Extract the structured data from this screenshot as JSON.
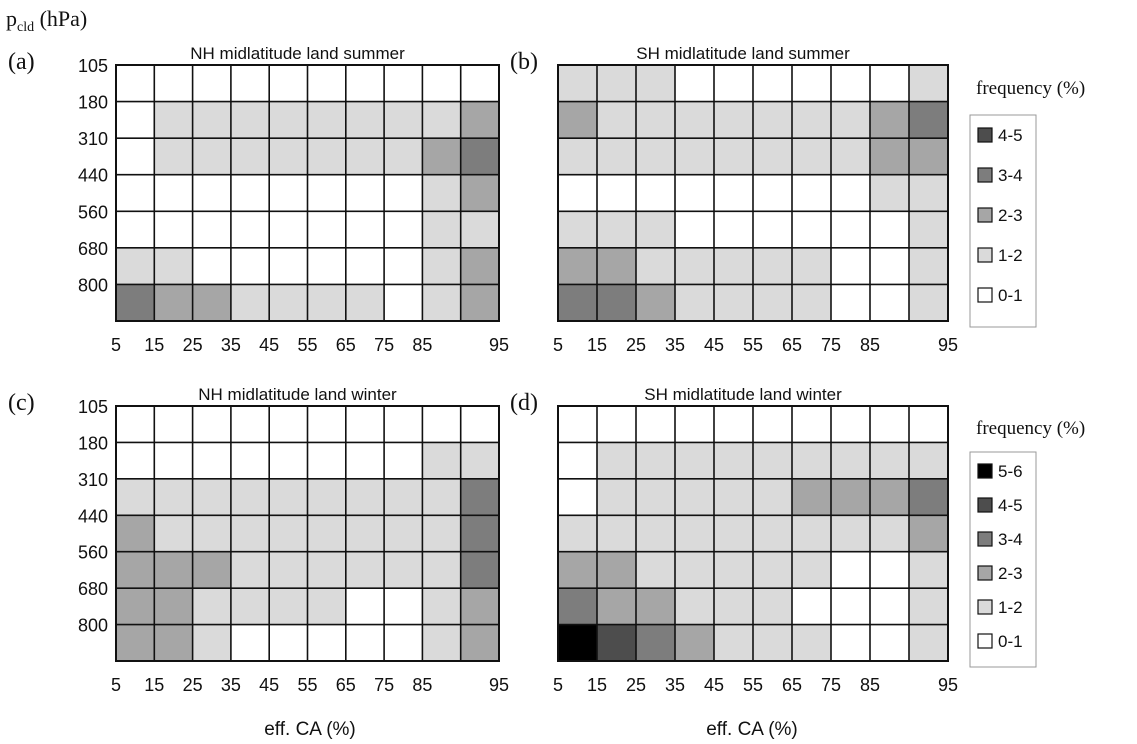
{
  "figure": {
    "y_axis_label": "p",
    "y_axis_label_sub": "cld",
    "y_axis_unit": " (hPa)",
    "x_axis_label": "eff. CA (%)"
  },
  "legends": [
    {
      "title": "frequency (%)",
      "items": [
        {
          "label": "4-5",
          "color": "#4d4d4d"
        },
        {
          "label": "3-4",
          "color": "#7d7d7d"
        },
        {
          "label": "2-3",
          "color": "#a6a6a6"
        },
        {
          "label": "1-2",
          "color": "#dadada"
        },
        {
          "label": "0-1",
          "color": "#ffffff"
        }
      ]
    },
    {
      "title": "frequency (%)",
      "items": [
        {
          "label": "5-6",
          "color": "#000000"
        },
        {
          "label": "4-5",
          "color": "#4d4d4d"
        },
        {
          "label": "3-4",
          "color": "#7d7d7d"
        },
        {
          "label": "2-3",
          "color": "#a6a6a6"
        },
        {
          "label": "1-2",
          "color": "#dadada"
        },
        {
          "label": "0-1",
          "color": "#ffffff"
        }
      ]
    }
  ],
  "chart_data": [
    {
      "type": "heatmap",
      "panel": "(a)",
      "title": "NH midlatitude land summer",
      "x": [
        "5",
        "15",
        "25",
        "35",
        "45",
        "55",
        "65",
        "75",
        "85",
        "95"
      ],
      "y": [
        "105",
        "180",
        "310",
        "440",
        "560",
        "680",
        "800"
      ],
      "values": [
        [
          1,
          1,
          1,
          1,
          1,
          1,
          1,
          1,
          1,
          1
        ],
        [
          1,
          2,
          2,
          2,
          2,
          2,
          2,
          2,
          2,
          3
        ],
        [
          1,
          2,
          2,
          2,
          2,
          2,
          2,
          2,
          3,
          4
        ],
        [
          1,
          1,
          1,
          1,
          1,
          1,
          1,
          1,
          2,
          3
        ],
        [
          1,
          1,
          1,
          1,
          1,
          1,
          1,
          1,
          2,
          2
        ],
        [
          2,
          2,
          1,
          1,
          1,
          1,
          1,
          1,
          2,
          3
        ],
        [
          4,
          3,
          3,
          2,
          2,
          2,
          2,
          1,
          2,
          3
        ]
      ]
    },
    {
      "type": "heatmap",
      "panel": "(b)",
      "title": "SH midlatitude land summer",
      "x": [
        "5",
        "15",
        "25",
        "35",
        "45",
        "55",
        "65",
        "75",
        "85",
        "95"
      ],
      "y": [
        "105",
        "180",
        "310",
        "440",
        "560",
        "680",
        "800"
      ],
      "values": [
        [
          2,
          2,
          2,
          1,
          1,
          1,
          1,
          1,
          1,
          2
        ],
        [
          3,
          2,
          2,
          2,
          2,
          2,
          2,
          2,
          3,
          4
        ],
        [
          2,
          2,
          2,
          2,
          2,
          2,
          2,
          2,
          3,
          3
        ],
        [
          1,
          1,
          1,
          1,
          1,
          1,
          1,
          1,
          2,
          2
        ],
        [
          2,
          2,
          2,
          1,
          1,
          1,
          1,
          1,
          1,
          2
        ],
        [
          3,
          3,
          2,
          2,
          2,
          2,
          2,
          1,
          1,
          2
        ],
        [
          4,
          4,
          3,
          2,
          2,
          2,
          2,
          1,
          1,
          2
        ]
      ]
    },
    {
      "type": "heatmap",
      "panel": "(c)",
      "title": "NH midlatitude land winter",
      "x": [
        "5",
        "15",
        "25",
        "35",
        "45",
        "55",
        "65",
        "75",
        "85",
        "95"
      ],
      "y": [
        "105",
        "180",
        "310",
        "440",
        "560",
        "680",
        "800"
      ],
      "values": [
        [
          1,
          1,
          1,
          1,
          1,
          1,
          1,
          1,
          1,
          1
        ],
        [
          1,
          1,
          1,
          1,
          1,
          1,
          1,
          1,
          2,
          2
        ],
        [
          2,
          2,
          2,
          2,
          2,
          2,
          2,
          2,
          2,
          4
        ],
        [
          3,
          2,
          2,
          2,
          2,
          2,
          2,
          2,
          2,
          4
        ],
        [
          3,
          3,
          3,
          2,
          2,
          2,
          2,
          2,
          2,
          4
        ],
        [
          3,
          3,
          2,
          2,
          2,
          2,
          1,
          1,
          2,
          3
        ],
        [
          3,
          3,
          2,
          1,
          1,
          1,
          1,
          1,
          2,
          3
        ]
      ]
    },
    {
      "type": "heatmap",
      "panel": "(d)",
      "title": "SH midlatitude land winter",
      "x": [
        "5",
        "15",
        "25",
        "35",
        "45",
        "55",
        "65",
        "75",
        "85",
        "95"
      ],
      "y": [
        "105",
        "180",
        "310",
        "440",
        "560",
        "680",
        "800"
      ],
      "values": [
        [
          1,
          1,
          1,
          1,
          1,
          1,
          1,
          1,
          1,
          1
        ],
        [
          1,
          2,
          2,
          2,
          2,
          2,
          2,
          2,
          2,
          2
        ],
        [
          1,
          2,
          2,
          2,
          2,
          2,
          3,
          3,
          3,
          4
        ],
        [
          2,
          2,
          2,
          2,
          2,
          2,
          2,
          2,
          2,
          3
        ],
        [
          3,
          3,
          2,
          2,
          2,
          2,
          2,
          1,
          1,
          2
        ],
        [
          4,
          3,
          3,
          2,
          2,
          2,
          1,
          1,
          1,
          2
        ],
        [
          6,
          5,
          4,
          3,
          2,
          2,
          2,
          1,
          1,
          2
        ]
      ]
    }
  ]
}
